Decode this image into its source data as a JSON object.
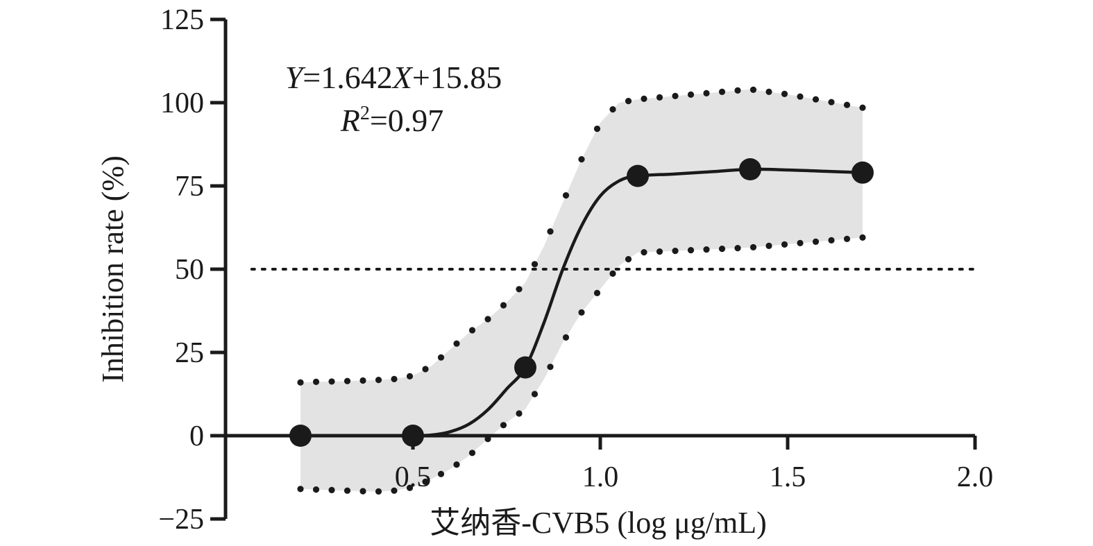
{
  "chart_data": {
    "type": "line",
    "xlabel": "艾纳香-CVB5 (log μg/mL)",
    "ylabel": "Inhibition rate (%)",
    "xlim": [
      0.0,
      2.0
    ],
    "ylim": [
      -25,
      125
    ],
    "xticks": [
      0.5,
      1.0,
      1.5,
      2.0
    ],
    "xtick_labels": [
      "0.5",
      "1.0",
      "1.5",
      "2.0"
    ],
    "yticks": [
      -25,
      0,
      25,
      50,
      75,
      100,
      125
    ],
    "ytick_labels": [
      "−25",
      "0",
      "25",
      "50",
      "75",
      "100",
      "125"
    ],
    "reference_line_y": 50,
    "annotation": {
      "eq_y": "Y",
      "eq_mid": "=1.642",
      "eq_x": "X",
      "eq_tail": "+15.85",
      "r_letter": "R",
      "r_sup": "2",
      "r_value": "=0.97"
    },
    "points": [
      {
        "x": 0.2,
        "y": 0
      },
      {
        "x": 0.5,
        "y": 0
      },
      {
        "x": 0.8,
        "y": 20.5
      },
      {
        "x": 1.1,
        "y": 78
      },
      {
        "x": 1.4,
        "y": 80
      },
      {
        "x": 1.7,
        "y": 79
      }
    ],
    "fit_curve": [
      [
        0.2,
        0
      ],
      [
        0.3,
        0
      ],
      [
        0.4,
        0
      ],
      [
        0.5,
        0
      ],
      [
        0.55,
        0.2
      ],
      [
        0.6,
        1.2
      ],
      [
        0.65,
        3.5
      ],
      [
        0.7,
        7.8
      ],
      [
        0.75,
        14
      ],
      [
        0.8,
        20.5
      ],
      [
        0.85,
        34
      ],
      [
        0.9,
        50
      ],
      [
        0.95,
        63
      ],
      [
        1.0,
        72
      ],
      [
        1.05,
        76.5
      ],
      [
        1.1,
        78
      ],
      [
        1.2,
        78.6
      ],
      [
        1.3,
        79.3
      ],
      [
        1.4,
        80
      ],
      [
        1.5,
        79.8
      ],
      [
        1.6,
        79.4
      ],
      [
        1.7,
        79
      ]
    ],
    "ci_upper": [
      [
        0.2,
        16
      ],
      [
        0.25,
        16.2
      ],
      [
        0.3,
        16.3
      ],
      [
        0.35,
        16.5
      ],
      [
        0.4,
        16.7
      ],
      [
        0.45,
        17
      ],
      [
        0.5,
        18
      ],
      [
        0.55,
        21
      ],
      [
        0.6,
        26
      ],
      [
        0.65,
        31
      ],
      [
        0.7,
        35
      ],
      [
        0.75,
        40
      ],
      [
        0.8,
        46
      ],
      [
        0.85,
        57
      ],
      [
        0.9,
        70
      ],
      [
        0.95,
        83
      ],
      [
        1.0,
        94
      ],
      [
        1.05,
        100
      ],
      [
        1.1,
        101
      ],
      [
        1.2,
        102
      ],
      [
        1.3,
        103
      ],
      [
        1.4,
        104
      ],
      [
        1.5,
        102.5
      ],
      [
        1.6,
        100.5
      ],
      [
        1.7,
        98.5
      ]
    ],
    "ci_lower": [
      [
        0.2,
        -16
      ],
      [
        0.25,
        -16.2
      ],
      [
        0.3,
        -16.4
      ],
      [
        0.35,
        -16.6
      ],
      [
        0.4,
        -16.8
      ],
      [
        0.45,
        -16.5
      ],
      [
        0.5,
        -15.5
      ],
      [
        0.55,
        -13
      ],
      [
        0.6,
        -10
      ],
      [
        0.65,
        -6
      ],
      [
        0.7,
        -1
      ],
      [
        0.75,
        4
      ],
      [
        0.8,
        8
      ],
      [
        0.85,
        17
      ],
      [
        0.9,
        28
      ],
      [
        0.95,
        37
      ],
      [
        1.0,
        44
      ],
      [
        1.05,
        51
      ],
      [
        1.1,
        55
      ],
      [
        1.2,
        55.5
      ],
      [
        1.3,
        56
      ],
      [
        1.4,
        56.5
      ],
      [
        1.5,
        57.5
      ],
      [
        1.6,
        58.5
      ],
      [
        1.7,
        59.5
      ]
    ],
    "colors": {
      "axis": "#1a1a1a",
      "line": "#1a1a1a",
      "ci_fill": "#e3e3e3",
      "ci_dots": "#1a1a1a",
      "marker": "#1a1a1a"
    },
    "grid": false,
    "legend": "none"
  }
}
